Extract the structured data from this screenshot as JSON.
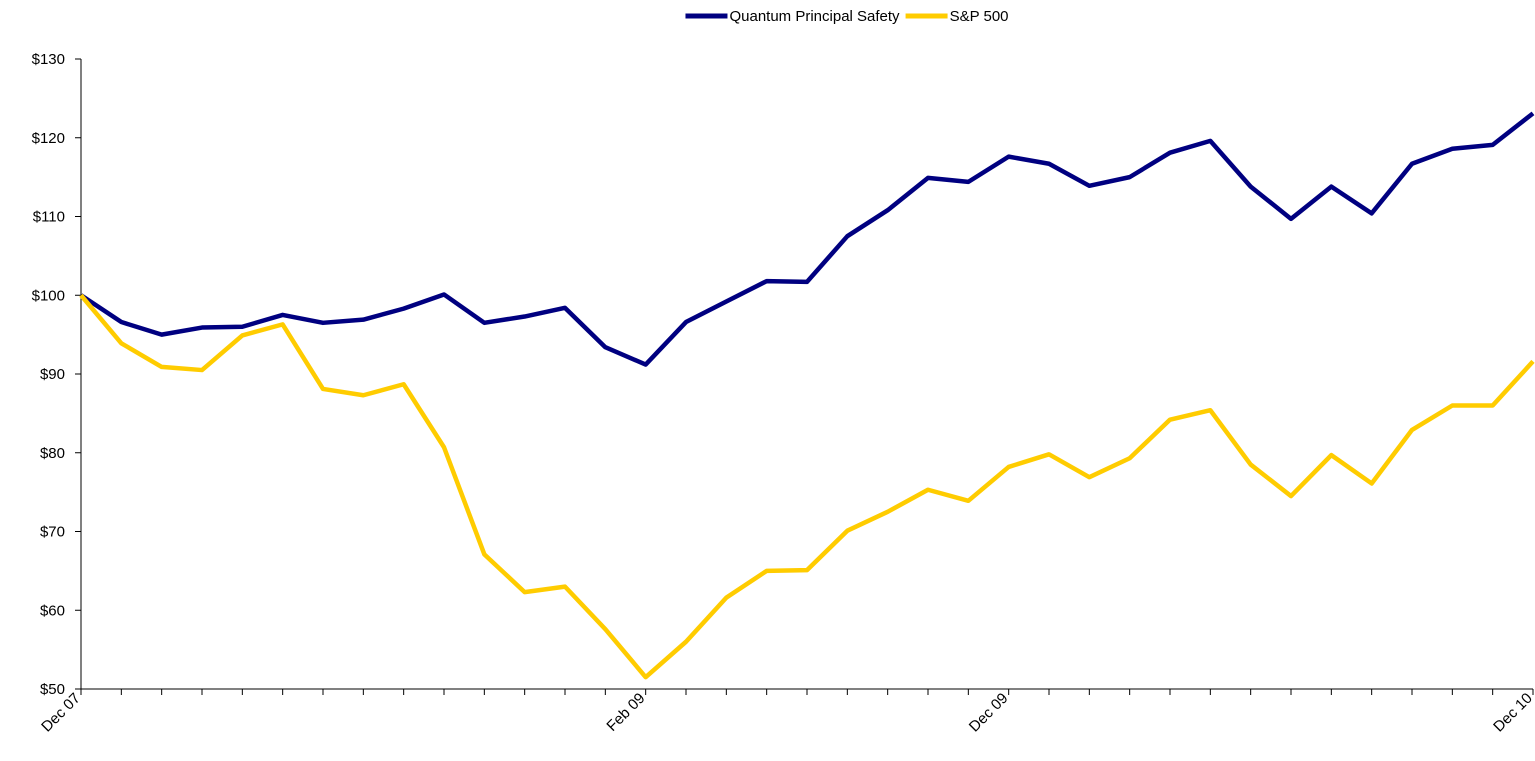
{
  "chart_data": {
    "type": "line",
    "categories": [
      "Dec 07",
      null,
      null,
      null,
      null,
      null,
      null,
      null,
      null,
      null,
      null,
      null,
      null,
      null,
      "Feb 09",
      null,
      null,
      null,
      null,
      null,
      null,
      null,
      null,
      "Dec 09",
      null,
      null,
      null,
      null,
      null,
      null,
      null,
      null,
      null,
      null,
      null,
      null,
      "Dec 10"
    ],
    "series": [
      {
        "name": "Quantum Principal Safety",
        "color": "#000080",
        "values": [
          100,
          96.6,
          95.0,
          95.9,
          96.0,
          97.5,
          96.5,
          96.9,
          98.3,
          100.1,
          96.5,
          97.3,
          98.4,
          93.4,
          91.2,
          96.6,
          99.2,
          101.8,
          101.7,
          107.5,
          110.8,
          114.9,
          114.4,
          117.6,
          116.7,
          113.9,
          115.0,
          118.1,
          119.6,
          113.8,
          109.7,
          113.8,
          110.4,
          116.7,
          118.6,
          119.1,
          123.1
        ]
      },
      {
        "name": "S&P 500",
        "color": "#ffcc00",
        "values": [
          100,
          93.9,
          90.9,
          90.5,
          94.9,
          96.3,
          88.1,
          87.3,
          88.7,
          80.7,
          67.1,
          62.3,
          63.0,
          57.6,
          51.5,
          56.0,
          61.6,
          65.0,
          65.1,
          70.1,
          72.5,
          75.3,
          73.9,
          78.2,
          79.8,
          76.9,
          79.3,
          84.2,
          85.4,
          78.5,
          74.5,
          79.7,
          76.1,
          82.9,
          86.0,
          86.0,
          91.6
        ]
      }
    ],
    "ylim": [
      50,
      130
    ],
    "yticks": [
      {
        "value": 50,
        "label": "$50"
      },
      {
        "value": 60,
        "label": "$60"
      },
      {
        "value": 70,
        "label": "$70"
      },
      {
        "value": 80,
        "label": "$80"
      },
      {
        "value": 90,
        "label": "$90"
      },
      {
        "value": 100,
        "label": "$100"
      },
      {
        "value": 110,
        "label": "$110"
      },
      {
        "value": 120,
        "label": "$120"
      },
      {
        "value": 130,
        "label": "$130"
      }
    ],
    "grid": false,
    "legend": "top"
  }
}
